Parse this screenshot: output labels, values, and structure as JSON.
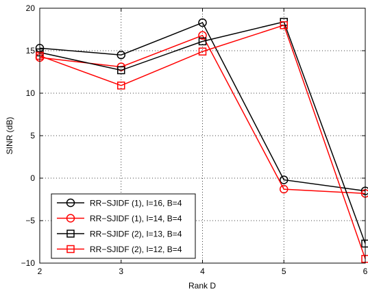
{
  "chart_data": {
    "type": "line",
    "title": "",
    "xlabel": "Rank D",
    "ylabel": "SINR (dB)",
    "x": [
      2,
      3,
      4,
      5,
      6
    ],
    "xlim": [
      2,
      6
    ],
    "ylim": [
      -10,
      20
    ],
    "xticks": [
      2,
      3,
      4,
      5,
      6
    ],
    "yticks": [
      -10,
      -5,
      0,
      5,
      10,
      15,
      20
    ],
    "xtick_labels": [
      "2",
      "3",
      "4",
      "5",
      "6"
    ],
    "ytick_labels": [
      "−10",
      "−5",
      "0",
      "5",
      "10",
      "15",
      "20"
    ],
    "grid": true,
    "legend_position": "bottom-left",
    "series": [
      {
        "name": "RR−SJIDF (1), I=16, B=4",
        "color": "#000000",
        "marker": "circle",
        "values": [
          15.3,
          14.5,
          18.3,
          -0.2,
          -1.5
        ]
      },
      {
        "name": "RR−SJIDF (1), I=14, B=4",
        "color": "#ff0000",
        "marker": "circle",
        "values": [
          14.2,
          13.1,
          16.8,
          -1.3,
          -1.8
        ]
      },
      {
        "name": "RR−SJIDF (2), I=13, B=4",
        "color": "#000000",
        "marker": "square",
        "values": [
          14.8,
          12.7,
          16.1,
          18.4,
          -7.7
        ]
      },
      {
        "name": "RR−SJIDF (2), I=12, B=4",
        "color": "#ff0000",
        "marker": "square",
        "values": [
          14.4,
          10.9,
          14.9,
          18.0,
          -9.5
        ]
      }
    ]
  }
}
